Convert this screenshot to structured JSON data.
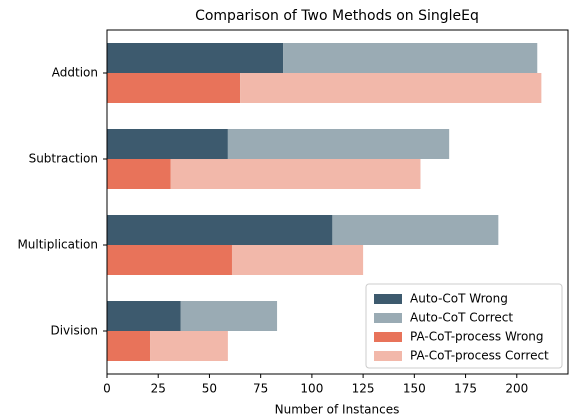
{
  "chart_data": {
    "type": "bar",
    "orientation": "horizontal",
    "title": "Comparison of Two Methods on SingleEq",
    "xlabel": "Number of Instances",
    "categories": [
      "Addtion",
      "Subtraction",
      "Multiplication",
      "Division"
    ],
    "series": [
      {
        "name": "Auto-CoT Wrong",
        "color": "#3d5a6e",
        "values": [
          86,
          59,
          110,
          36
        ]
      },
      {
        "name": "Auto-CoT Correct",
        "color": "#9aabb4",
        "values": [
          124,
          108,
          81,
          47
        ]
      },
      {
        "name": "PA-CoT-process Wrong",
        "color": "#e8735a",
        "values": [
          65,
          31,
          61,
          21
        ]
      },
      {
        "name": "PA-CoT-process Correct",
        "color": "#f2b8aa",
        "values": [
          147,
          122,
          64,
          38
        ]
      }
    ],
    "xlim": [
      0,
      225
    ],
    "xticks": [
      0,
      25,
      50,
      75,
      100,
      125,
      150,
      175,
      200
    ],
    "legend": "lower right"
  }
}
